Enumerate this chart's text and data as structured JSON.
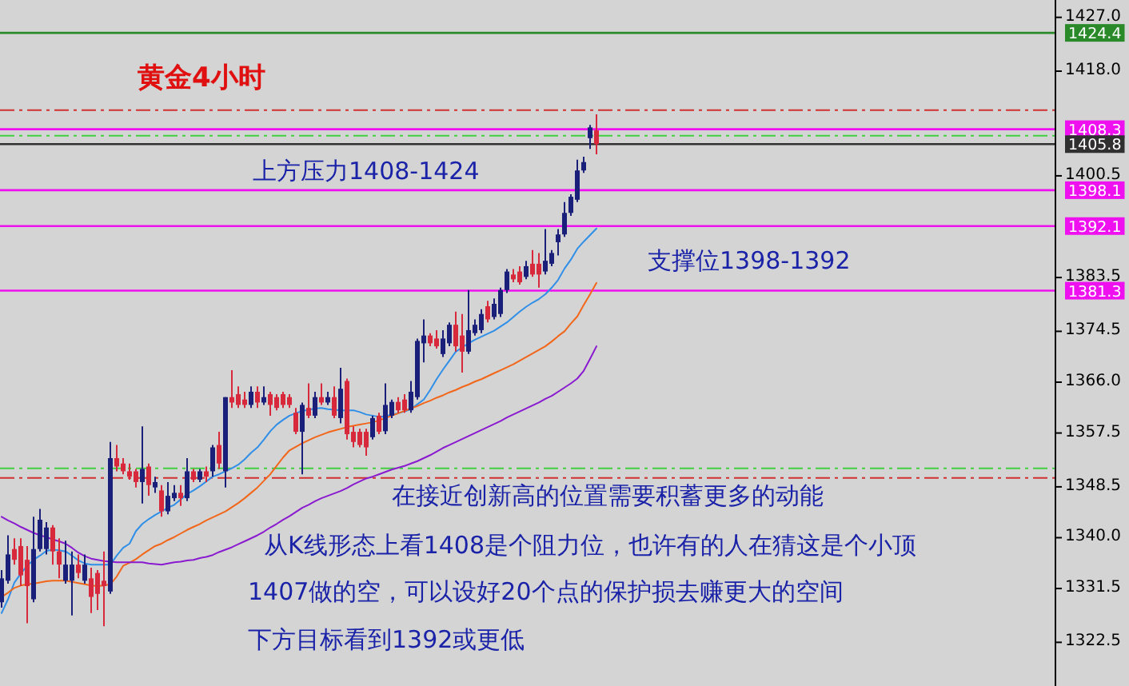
{
  "chart_data": {
    "type": "candlestick",
    "title": "黄金4小时",
    "annotations": [
      "上方压力1408-1424",
      "支撑位1398-1392",
      "在接近创新高的位置需要积蓄更多的动能",
      "从K线形态上看1408是个阻力位，也许有的人在猜这是个小顶",
      "1407做的空，可以设好20个点的保护损去赚更大的空间",
      "下方目标看到1392或更低"
    ],
    "categories": [
      null,
      null,
      null,
      null,
      null,
      null,
      null,
      null,
      null,
      null,
      null,
      null,
      null,
      null,
      null,
      null,
      null,
      null,
      null,
      null,
      null,
      null,
      null,
      null,
      null,
      null,
      null,
      null,
      null,
      null,
      null,
      null,
      null,
      null,
      null,
      null,
      null,
      null,
      null,
      null,
      null,
      null,
      null,
      null,
      null,
      null,
      null,
      null,
      null,
      null,
      null,
      null,
      null,
      null,
      null,
      null,
      null,
      null,
      null,
      null,
      null,
      null,
      null,
      null,
      null,
      null,
      null,
      null,
      null,
      null,
      null,
      null,
      null,
      null,
      null,
      null,
      null,
      null,
      null,
      null,
      null,
      null,
      null,
      null,
      null,
      null,
      null,
      null,
      null,
      null,
      null,
      null,
      null,
      null
    ],
    "ohlc": [
      [
        1329.2,
        1334.6,
        1328.3,
        1333.2
      ],
      [
        1332.8,
        1340.4,
        1332.3,
        1337.2
      ],
      [
        1338.1,
        1339.9,
        1335.5,
        1336.3
      ],
      [
        1338.6,
        1339.9,
        1331.9,
        1333.7
      ],
      [
        1336.3,
        1338.6,
        1325.7,
        1331.9
      ],
      [
        1329.7,
        1343.5,
        1329.2,
        1338.1
      ],
      [
        1338.1,
        1344.8,
        1337.7,
        1343.0
      ],
      [
        1338.1,
        1342.6,
        1337.2,
        1341.7
      ],
      [
        1341.7,
        1342.1,
        1335.5,
        1337.7
      ],
      [
        1337.7,
        1339.9,
        1333.2,
        1335.5
      ],
      [
        1332.8,
        1339.5,
        1332.3,
        1335.5
      ],
      [
        1332.8,
        1337.7,
        1327.0,
        1335.5
      ],
      [
        1335.5,
        1337.2,
        1333.2,
        1334.1
      ],
      [
        1332.8,
        1337.2,
        1332.3,
        1335.5
      ],
      [
        1333.2,
        1335.0,
        1327.4,
        1330.1
      ],
      [
        1334.1,
        1334.6,
        1327.9,
        1330.6
      ],
      [
        1332.8,
        1337.7,
        1325.2,
        1331.9
      ],
      [
        1331.0,
        1356.0,
        1330.6,
        1353.3
      ],
      [
        1353.3,
        1355.5,
        1351.1,
        1351.9
      ],
      [
        1352.4,
        1353.3,
        1350.6,
        1351.1
      ],
      [
        1351.1,
        1352.4,
        1349.7,
        1350.2
      ],
      [
        1351.1,
        1351.5,
        1348.4,
        1349.3
      ],
      [
        1349.3,
        1358.6,
        1345.7,
        1351.5
      ],
      [
        1351.9,
        1352.4,
        1347.0,
        1348.8
      ],
      [
        1348.4,
        1350.2,
        1347.5,
        1349.3
      ],
      [
        1347.9,
        1348.8,
        1343.5,
        1344.4
      ],
      [
        1344.4,
        1349.3,
        1343.9,
        1347.0
      ],
      [
        1346.6,
        1348.8,
        1346.1,
        1347.5
      ],
      [
        1347.5,
        1348.8,
        1345.3,
        1346.6
      ],
      [
        1346.6,
        1353.3,
        1346.1,
        1351.1
      ],
      [
        1351.1,
        1351.5,
        1349.3,
        1349.7
      ],
      [
        1349.7,
        1351.5,
        1349.3,
        1351.1
      ],
      [
        1351.1,
        1351.9,
        1349.3,
        1350.2
      ],
      [
        1351.1,
        1355.5,
        1350.2,
        1355.1
      ],
      [
        1355.5,
        1357.7,
        1351.5,
        1352.4
      ],
      [
        1351.1,
        1363.5,
        1348.4,
        1363.5
      ],
      [
        1363.5,
        1368.0,
        1361.7,
        1362.6
      ],
      [
        1364.0,
        1365.3,
        1361.7,
        1362.2
      ],
      [
        1363.1,
        1364.4,
        1361.7,
        1362.2
      ],
      [
        1362.2,
        1365.3,
        1361.7,
        1364.4
      ],
      [
        1364.4,
        1365.3,
        1361.7,
        1362.6
      ],
      [
        1362.6,
        1365.3,
        1362.2,
        1363.5
      ],
      [
        1364.0,
        1364.4,
        1360.4,
        1362.2
      ],
      [
        1363.5,
        1364.0,
        1361.3,
        1361.7
      ],
      [
        1364.0,
        1364.4,
        1361.7,
        1362.2
      ],
      [
        1363.5,
        1364.0,
        1361.7,
        1362.2
      ],
      [
        1360.9,
        1361.7,
        1357.3,
        1357.7
      ],
      [
        1357.7,
        1362.6,
        1350.6,
        1362.2
      ],
      [
        1361.7,
        1365.8,
        1360.0,
        1360.4
      ],
      [
        1360.4,
        1364.4,
        1360.0,
        1363.5
      ],
      [
        1363.5,
        1365.8,
        1362.2,
        1362.6
      ],
      [
        1362.6,
        1364.4,
        1362.2,
        1363.5
      ],
      [
        1363.5,
        1365.3,
        1360.0,
        1360.4
      ],
      [
        1360.0,
        1368.4,
        1359.1,
        1364.9
      ],
      [
        1366.2,
        1366.6,
        1356.4,
        1357.3
      ],
      [
        1357.7,
        1358.6,
        1355.1,
        1356.0
      ],
      [
        1357.7,
        1358.2,
        1355.1,
        1355.5
      ],
      [
        1357.7,
        1358.2,
        1353.7,
        1355.1
      ],
      [
        1356.8,
        1360.4,
        1356.4,
        1360.0
      ],
      [
        1360.4,
        1360.9,
        1357.3,
        1357.7
      ],
      [
        1357.8,
        1365.8,
        1357.3,
        1362.2
      ],
      [
        1360.4,
        1363.1,
        1360.0,
        1362.7
      ],
      [
        1362.7,
        1363.5,
        1360.9,
        1361.3
      ],
      [
        1363.1,
        1364.0,
        1360.9,
        1361.3
      ],
      [
        1361.3,
        1366.2,
        1360.9,
        1364.4
      ],
      [
        1363.5,
        1373.3,
        1363.1,
        1372.9
      ],
      [
        1372.5,
        1376.5,
        1369.3,
        1373.8
      ],
      [
        1373.8,
        1374.2,
        1372.0,
        1372.5
      ],
      [
        1373.3,
        1374.7,
        1371.6,
        1372.0
      ],
      [
        1370.7,
        1374.7,
        1370.2,
        1373.3
      ],
      [
        1372.5,
        1376.0,
        1372.0,
        1375.6
      ],
      [
        1375.6,
        1377.8,
        1371.1,
        1372.0
      ],
      [
        1373.8,
        1377.4,
        1367.6,
        1371.1
      ],
      [
        1371.1,
        1381.4,
        1370.7,
        1374.7
      ],
      [
        1374.2,
        1376.5,
        1373.8,
        1375.6
      ],
      [
        1374.7,
        1378.2,
        1374.2,
        1377.4
      ],
      [
        1378.7,
        1379.6,
        1376.0,
        1376.5
      ],
      [
        1376.9,
        1380.0,
        1376.5,
        1379.1
      ],
      [
        1377.4,
        1381.8,
        1376.9,
        1381.4
      ],
      [
        1381.4,
        1384.9,
        1380.9,
        1384.5
      ],
      [
        1384.0,
        1384.9,
        1382.7,
        1383.2
      ],
      [
        1384.5,
        1385.4,
        1382.3,
        1382.7
      ],
      [
        1383.6,
        1386.3,
        1383.2,
        1385.4
      ],
      [
        1385.8,
        1388.1,
        1383.6,
        1384.0
      ],
      [
        1385.8,
        1387.6,
        1381.8,
        1384.0
      ],
      [
        1384.5,
        1391.6,
        1384.0,
        1386.3
      ],
      [
        1385.8,
        1388.1,
        1385.4,
        1387.6
      ],
      [
        1389.4,
        1391.6,
        1387.2,
        1390.7
      ],
      [
        1390.7,
        1396.1,
        1390.3,
        1394.3
      ],
      [
        1394.3,
        1397.4,
        1393.8,
        1397.0
      ],
      [
        1396.5,
        1403.2,
        1396.1,
        1401.4
      ],
      [
        1401.4,
        1403.7,
        1401.0,
        1402.8
      ],
      [
        1406.8,
        1409.0,
        1405.0,
        1408.6
      ],
      [
        1408.1,
        1410.8,
        1404.1,
        1405.8
      ]
    ],
    "series": [
      {
        "type": "line",
        "color": "#2f8fe8",
        "values": [
          1327.4,
          1329.7,
          1332.5,
          1334.0,
          1335.3,
          1336.3,
          1337.0,
          1337.8,
          1338.0,
          1337.9,
          1337.7,
          1337.0,
          1336.2,
          1335.7,
          1335.5,
          1335.5,
          1335.5,
          1335.5,
          1337.0,
          1338.3,
          1339.0,
          1341.1,
          1342.3,
          1343.1,
          1343.8,
          1344.4,
          1345.0,
          1345.5,
          1346.4,
          1347.3,
          1347.9,
          1348.6,
          1349.4,
          1350.2,
          1350.6,
          1351.1,
          1351.6,
          1352.2,
          1353.1,
          1354.2,
          1355.1,
          1356.4,
          1357.8,
          1358.9,
          1359.7,
          1360.4,
          1360.8,
          1361.2,
          1361.4,
          1361.6,
          1361.7,
          1361.5,
          1361.4,
          1361.3,
          1361.3,
          1361.3,
          1361.0,
          1360.6,
          1360.4,
          1360.2,
          1360.3,
          1360.6,
          1360.8,
          1361.1,
          1361.5,
          1362.3,
          1363.1,
          1364.7,
          1366.5,
          1368.1,
          1369.6,
          1371.1,
          1371.8,
          1372.5,
          1373.1,
          1373.6,
          1374.1,
          1374.6,
          1375.3,
          1376.0,
          1376.9,
          1377.8,
          1378.6,
          1379.3,
          1379.9,
          1380.7,
          1381.8,
          1383.1,
          1385.0,
          1386.5,
          1388.3,
          1389.5,
          1390.6,
          1391.7
        ]
      },
      {
        "type": "line",
        "color": "#f2661a",
        "values": [
          1330.1,
          1330.8,
          1331.6,
          1332.0,
          1332.2,
          1332.3,
          1332.5,
          1332.7,
          1332.8,
          1332.8,
          1332.8,
          1332.6,
          1332.4,
          1332.2,
          1332.0,
          1331.9,
          1332.0,
          1332.2,
          1333.5,
          1335.3,
          1335.8,
          1336.4,
          1337.2,
          1337.9,
          1338.6,
          1339.0,
          1339.6,
          1340.1,
          1340.7,
          1341.3,
          1341.8,
          1342.3,
          1342.9,
          1343.4,
          1343.9,
          1344.4,
          1345.1,
          1345.8,
          1346.6,
          1347.5,
          1348.4,
          1349.5,
          1350.6,
          1352.0,
          1353.4,
          1354.6,
          1355.2,
          1355.8,
          1356.3,
          1356.8,
          1357.2,
          1357.6,
          1357.9,
          1358.2,
          1358.5,
          1358.7,
          1358.9,
          1359.1,
          1359.3,
          1359.6,
          1360.0,
          1360.4,
          1360.8,
          1361.2,
          1361.6,
          1362.0,
          1362.5,
          1362.9,
          1363.4,
          1363.8,
          1364.3,
          1364.7,
          1365.2,
          1365.6,
          1366.1,
          1366.5,
          1367.0,
          1367.5,
          1368.0,
          1368.5,
          1369.0,
          1369.6,
          1370.2,
          1370.8,
          1371.4,
          1372.0,
          1372.8,
          1373.7,
          1374.5,
          1375.8,
          1377.0,
          1378.9,
          1380.7,
          1382.6
        ]
      },
      {
        "type": "line",
        "color": "#8a1ad0",
        "values": [
          1343.5,
          1342.9,
          1342.4,
          1341.8,
          1341.3,
          1340.8,
          1340.4,
          1340.1,
          1339.7,
          1339.4,
          1339.0,
          1338.3,
          1337.5,
          1336.9,
          1336.5,
          1336.3,
          1336.1,
          1336.0,
          1335.9,
          1335.9,
          1335.9,
          1335.9,
          1335.9,
          1335.7,
          1335.6,
          1335.5,
          1335.7,
          1335.9,
          1336.0,
          1336.2,
          1336.3,
          1336.6,
          1336.8,
          1337.1,
          1337.6,
          1338.0,
          1338.4,
          1338.9,
          1339.4,
          1339.9,
          1340.4,
          1341.0,
          1341.7,
          1342.3,
          1343.0,
          1343.6,
          1344.3,
          1345.0,
          1345.5,
          1346.1,
          1346.6,
          1347.0,
          1347.4,
          1347.8,
          1348.3,
          1348.9,
          1349.4,
          1349.9,
          1350.2,
          1350.6,
          1351.0,
          1351.4,
          1351.7,
          1352.0,
          1352.4,
          1352.8,
          1353.3,
          1353.8,
          1354.4,
          1355.0,
          1355.5,
          1356.0,
          1356.5,
          1357.0,
          1357.5,
          1358.0,
          1358.5,
          1359.0,
          1359.5,
          1360.1,
          1360.6,
          1361.1,
          1361.6,
          1362.1,
          1362.6,
          1363.2,
          1363.7,
          1364.4,
          1365.1,
          1365.8,
          1366.6,
          1367.9,
          1369.9,
          1372.0
        ]
      }
    ],
    "ylim": [
      1315.2,
      1429.9
    ],
    "yticks": [
      {
        "value": 1427,
        "label": "1427.0"
      },
      {
        "value": 1418,
        "label": "1418.0"
      },
      {
        "value": 1400.5,
        "label": "1400.5"
      },
      {
        "value": 1383.5,
        "label": "1383.5"
      },
      {
        "value": 1374.5,
        "label": "1374.5"
      },
      {
        "value": 1366,
        "label": "1366.0"
      },
      {
        "value": 1357.5,
        "label": "1357.5"
      },
      {
        "value": 1348.5,
        "label": "1348.5"
      },
      {
        "value": 1340,
        "label": "1340.0"
      },
      {
        "value": 1331.5,
        "label": "1331.5"
      },
      {
        "value": 1322.5,
        "label": "1322.5"
      }
    ],
    "tick_labels": "y",
    "ref_lines": [
      {
        "axis": "y",
        "value": 1424.4,
        "label": "1424.4",
        "color": "#2a8a2a"
      },
      {
        "axis": "y",
        "value": 1411.5,
        "color": "#d03030",
        "line_style": "dashed"
      },
      {
        "axis": "y",
        "value": 1408.3,
        "label": "1408.3",
        "color": "#ee10ee"
      },
      {
        "axis": "y",
        "value": 1407.2,
        "color": "#40d040",
        "line_style": "dashed"
      },
      {
        "axis": "y",
        "value": 1405.8,
        "label": "1405.8",
        "color": "#303030"
      },
      {
        "axis": "y",
        "value": 1398.1,
        "label": "1398.1",
        "color": "#ee10ee"
      },
      {
        "axis": "y",
        "value": 1392.1,
        "label": "1392.1",
        "color": "#ee10ee"
      },
      {
        "axis": "y",
        "value": 1381.3,
        "label": "1381.3",
        "color": "#ee10ee"
      },
      {
        "axis": "y",
        "value": 1351.6,
        "color": "#40d040",
        "line_style": "dashed"
      },
      {
        "axis": "y",
        "value": 1350.0,
        "color": "#d03030",
        "line_style": "dashed"
      }
    ]
  }
}
